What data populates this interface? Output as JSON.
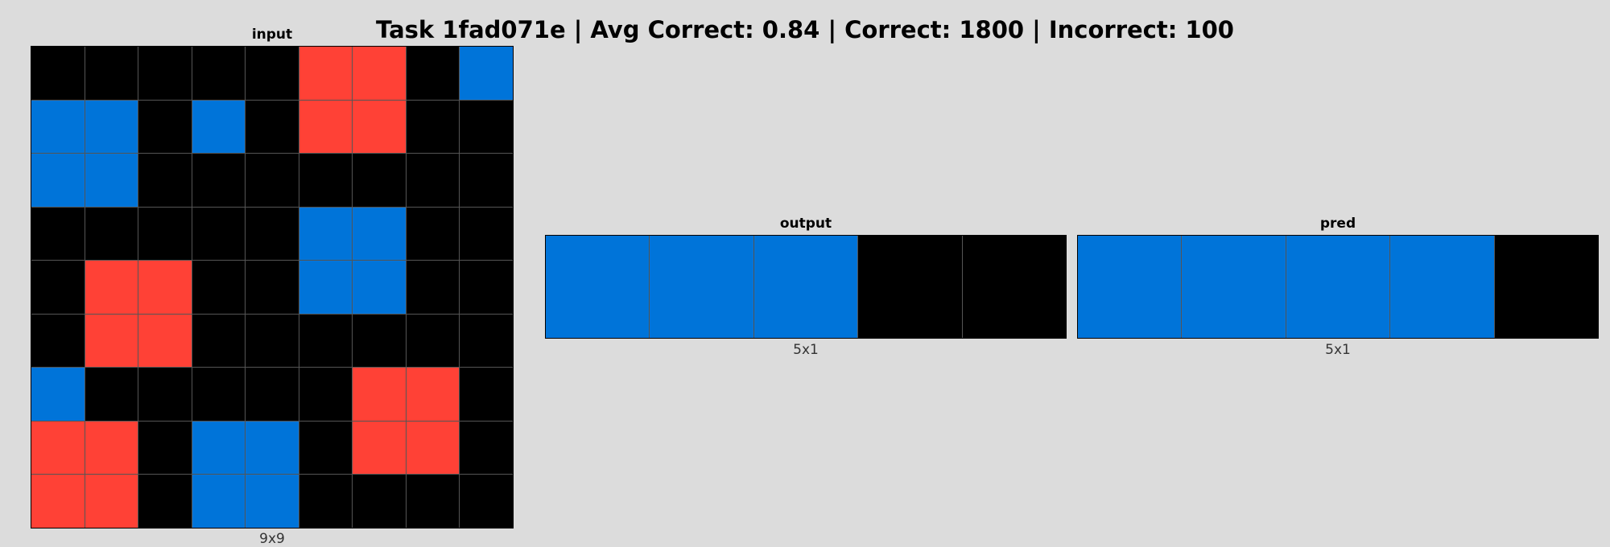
{
  "title": "Task 1fad071e | Avg Correct: 0.84 | Correct: 1800 | Incorrect: 100",
  "palette": {
    "0": "#000000",
    "1": "#0074d9",
    "2": "#ff4136"
  },
  "panels": {
    "input": {
      "title": "input",
      "dims": "9x9",
      "rows": 9,
      "cols": 9,
      "grid": [
        [
          0,
          0,
          0,
          0,
          0,
          2,
          2,
          0,
          1
        ],
        [
          1,
          1,
          0,
          1,
          0,
          2,
          2,
          0,
          0
        ],
        [
          1,
          1,
          0,
          0,
          0,
          0,
          0,
          0,
          0
        ],
        [
          0,
          0,
          0,
          0,
          0,
          1,
          1,
          0,
          0
        ],
        [
          0,
          2,
          2,
          0,
          0,
          1,
          1,
          0,
          0
        ],
        [
          0,
          2,
          2,
          0,
          0,
          0,
          0,
          0,
          0
        ],
        [
          1,
          0,
          0,
          0,
          0,
          0,
          2,
          2,
          0
        ],
        [
          2,
          2,
          0,
          1,
          1,
          0,
          2,
          2,
          0
        ],
        [
          2,
          2,
          0,
          1,
          1,
          0,
          0,
          0,
          0
        ]
      ]
    },
    "output": {
      "title": "output",
      "dims": "5x1",
      "rows": 1,
      "cols": 5,
      "grid": [
        [
          1,
          1,
          1,
          0,
          0
        ]
      ]
    },
    "pred": {
      "title": "pred",
      "dims": "5x1",
      "rows": 1,
      "cols": 5,
      "grid": [
        [
          1,
          1,
          1,
          1,
          0
        ]
      ]
    }
  }
}
